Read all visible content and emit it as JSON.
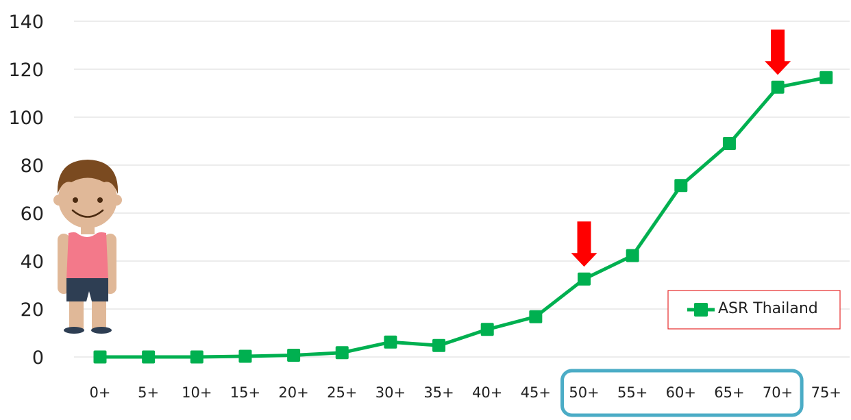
{
  "chart_data": {
    "type": "line",
    "title": "",
    "xlabel": "",
    "ylabel": "",
    "categories": [
      "0+",
      "5+",
      "10+",
      "15+",
      "20+",
      "25+",
      "30+",
      "35+",
      "40+",
      "45+",
      "50+",
      "55+",
      "60+",
      "65+",
      "70+",
      "75+"
    ],
    "series": [
      {
        "name": "ASR Thailand",
        "values": [
          0,
          0,
          0,
          0.3,
          0.7,
          1.8,
          6.2,
          4.8,
          11.5,
          16.8,
          32.5,
          42.3,
          71.5,
          89,
          112.5,
          116.5
        ],
        "color": "#00b050"
      }
    ],
    "ylim": [
      0,
      140
    ],
    "yticks": [
      0,
      20,
      40,
      60,
      80,
      100,
      120,
      140
    ],
    "grid": true,
    "legend_position": "lower-right",
    "annotations": {
      "arrows": [
        {
          "category": "50+",
          "color": "#ff0000"
        },
        {
          "category": "70+",
          "color": "#ff0000"
        }
      ],
      "highlight_box": {
        "from": "50+",
        "to": "70+",
        "color": "#4bacc6"
      },
      "illustration": "boy-character"
    }
  }
}
